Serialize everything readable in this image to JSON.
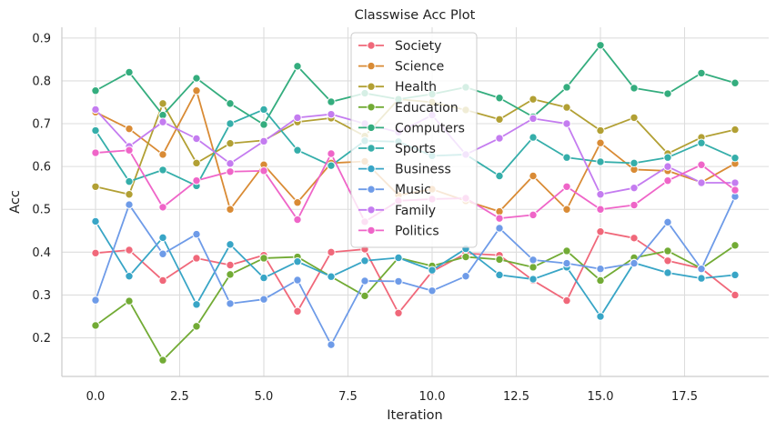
{
  "chart_data": {
    "type": "line",
    "title": "Classwise Acc Plot",
    "xlabel": "Iteration",
    "ylabel": "Acc",
    "xlim": [
      -1,
      20
    ],
    "ylim": [
      0.11,
      0.925
    ],
    "xticks": [
      0.0,
      2.5,
      5.0,
      7.5,
      10.0,
      12.5,
      15.0,
      17.5
    ],
    "xtick_labels": [
      "0.0",
      "2.5",
      "5.0",
      "7.5",
      "10.0",
      "12.5",
      "15.0",
      "17.5"
    ],
    "yticks": [
      0.2,
      0.3,
      0.4,
      0.5,
      0.6,
      0.7,
      0.8,
      0.9
    ],
    "ytick_labels": [
      "0.2",
      "0.3",
      "0.4",
      "0.5",
      "0.6",
      "0.7",
      "0.8",
      "0.9"
    ],
    "grid": true,
    "legend_position": "top-center",
    "x": [
      0,
      1,
      2,
      3,
      4,
      5,
      6,
      7,
      8,
      9,
      10,
      11,
      12,
      13,
      14,
      15,
      16,
      17,
      18,
      19
    ],
    "series": [
      {
        "name": "Society",
        "color": "#f0687a",
        "values": [
          0.398,
          0.405,
          0.334,
          0.386,
          0.37,
          0.393,
          0.262,
          0.4,
          0.407,
          0.258,
          0.355,
          0.397,
          0.393,
          0.334,
          0.287,
          0.448,
          0.433,
          0.38,
          0.362,
          0.3
        ]
      },
      {
        "name": "Science",
        "color": "#d98b35",
        "values": [
          0.727,
          0.688,
          0.628,
          0.777,
          0.5,
          0.604,
          0.516,
          0.608,
          0.612,
          0.533,
          0.547,
          0.52,
          0.495,
          0.578,
          0.5,
          0.655,
          0.593,
          0.59,
          0.563,
          0.607
        ]
      },
      {
        "name": "Health",
        "color": "#b2a034",
        "values": [
          0.553,
          0.535,
          0.747,
          0.608,
          0.654,
          0.661,
          0.704,
          0.713,
          0.671,
          0.757,
          0.75,
          0.732,
          0.71,
          0.757,
          0.738,
          0.684,
          0.714,
          0.63,
          0.668,
          0.686
        ]
      },
      {
        "name": "Education",
        "color": "#72ab35",
        "values": [
          0.229,
          0.286,
          0.148,
          0.227,
          0.348,
          0.386,
          0.389,
          0.343,
          0.298,
          0.387,
          0.368,
          0.389,
          0.383,
          0.365,
          0.403,
          0.334,
          0.387,
          0.403,
          0.362,
          0.416
        ]
      },
      {
        "name": "Computers",
        "color": "#34ad7e",
        "values": [
          0.777,
          0.82,
          0.72,
          0.806,
          0.747,
          0.698,
          0.834,
          0.751,
          0.771,
          0.757,
          0.769,
          0.785,
          0.76,
          0.716,
          0.785,
          0.883,
          0.783,
          0.77,
          0.818,
          0.795
        ]
      },
      {
        "name": "Sports",
        "color": "#35aeaa",
        "values": [
          0.684,
          0.565,
          0.592,
          0.555,
          0.7,
          0.733,
          0.638,
          0.602,
          0.66,
          0.658,
          0.625,
          0.628,
          0.578,
          0.668,
          0.621,
          0.611,
          0.608,
          0.621,
          0.655,
          0.62
        ]
      },
      {
        "name": "Business",
        "color": "#38a5c6",
        "values": [
          0.472,
          0.344,
          0.434,
          0.278,
          0.418,
          0.34,
          0.378,
          0.343,
          0.38,
          0.387,
          0.358,
          0.408,
          0.347,
          0.337,
          0.365,
          0.25,
          0.375,
          0.352,
          0.339,
          0.347
        ]
      },
      {
        "name": "Music",
        "color": "#6e9be8",
        "values": [
          0.288,
          0.511,
          0.396,
          0.442,
          0.28,
          0.29,
          0.335,
          0.184,
          0.333,
          0.332,
          0.31,
          0.344,
          0.456,
          0.382,
          0.374,
          0.361,
          0.374,
          0.47,
          0.361,
          0.53
        ]
      },
      {
        "name": "Family",
        "color": "#c47cf0",
        "values": [
          0.733,
          0.647,
          0.704,
          0.665,
          0.607,
          0.659,
          0.714,
          0.722,
          0.7,
          0.68,
          0.72,
          0.628,
          0.666,
          0.712,
          0.7,
          0.535,
          0.55,
          0.6,
          0.562,
          0.562
        ]
      },
      {
        "name": "Politics",
        "color": "#ef65c8",
        "values": [
          0.632,
          0.638,
          0.505,
          0.567,
          0.588,
          0.59,
          0.476,
          0.63,
          0.471,
          0.52,
          0.524,
          0.526,
          0.479,
          0.487,
          0.553,
          0.5,
          0.51,
          0.567,
          0.604,
          0.545
        ]
      }
    ]
  }
}
